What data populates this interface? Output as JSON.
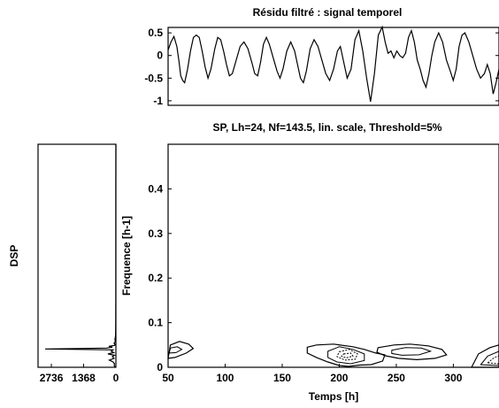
{
  "chart_data": [
    {
      "id": "signal",
      "type": "line",
      "title": "Résidu filtré : signal temporel",
      "xlim": [
        0,
        340
      ],
      "ylim": [
        -1.1,
        0.62
      ],
      "yticks": [
        0.5,
        0,
        -0.5,
        -1
      ],
      "ytick_labels": [
        "0.5",
        "0",
        "-0.5",
        "-1"
      ],
      "series": [
        {
          "x": [
            0,
            3,
            6,
            9,
            11,
            13,
            15,
            17,
            20,
            23,
            26,
            29,
            32,
            35,
            38,
            41,
            44,
            48,
            51,
            54,
            57,
            60,
            63,
            66,
            70,
            74,
            78,
            82,
            86,
            89,
            92,
            95,
            98,
            101,
            104,
            108,
            112,
            115,
            118,
            122,
            126,
            130,
            133,
            136,
            139,
            142,
            146,
            150,
            154,
            158,
            162,
            166,
            170,
            174,
            177,
            181,
            184,
            188,
            192,
            196,
            200,
            204,
            208,
            212,
            216,
            220,
            223,
            226,
            229,
            232,
            235,
            238,
            241,
            244,
            247,
            250,
            253,
            256,
            259,
            262,
            265,
            268,
            271,
            274,
            278,
            282,
            286,
            290,
            293,
            296,
            299,
            302,
            305,
            309,
            313,
            317,
            321,
            325,
            328,
            331,
            334,
            337,
            340
          ],
          "values": [
            0.12,
            0.3,
            0.42,
            0.2,
            -0.1,
            -0.45,
            -0.55,
            -0.6,
            -0.3,
            0.1,
            0.4,
            0.45,
            0.4,
            0.1,
            -0.25,
            -0.5,
            -0.3,
            0.15,
            0.4,
            0.35,
            0.1,
            -0.2,
            -0.45,
            -0.4,
            -0.1,
            0.2,
            0.3,
            0.15,
            -0.15,
            -0.4,
            -0.45,
            -0.15,
            0.25,
            0.4,
            0.25,
            -0.05,
            -0.35,
            -0.5,
            -0.3,
            0.1,
            0.3,
            0.1,
            -0.2,
            -0.5,
            -0.6,
            -0.35,
            0.15,
            0.35,
            0.2,
            -0.1,
            -0.4,
            -0.55,
            -0.3,
            0.1,
            0.2,
            -0.2,
            -0.5,
            -0.3,
            0.35,
            0.55,
            0.1,
            -0.5,
            -1.02,
            -0.4,
            0.45,
            0.63,
            0.3,
            0.05,
            0.1,
            -0.05,
            0.1,
            0.0,
            -0.05,
            0.05,
            0.4,
            0.55,
            0.3,
            -0.1,
            -0.3,
            -0.55,
            -0.7,
            -0.4,
            0.0,
            0.3,
            0.5,
            0.3,
            -0.1,
            -0.35,
            -0.55,
            -0.3,
            0.2,
            0.45,
            0.5,
            0.3,
            0.0,
            -0.3,
            -0.5,
            -0.4,
            -0.2,
            -0.4,
            -0.85,
            -0.6,
            -0.3
          ]
        }
      ]
    },
    {
      "id": "dsp",
      "type": "line",
      "ylabel": "DSP",
      "xticks": [
        2736,
        1368,
        0
      ],
      "xtick_labels": [
        "2736",
        "1368",
        "0"
      ],
      "x_reversed": true,
      "xlim": [
        0,
        3300
      ],
      "ylim": [
        0,
        0.5
      ],
      "series": [
        {
          "freq": [
            0,
            0.004,
            0.008,
            0.012,
            0.016,
            0.02,
            0.024,
            0.027,
            0.03,
            0.033,
            0.036,
            0.039,
            0.041,
            0.043,
            0.045,
            0.047,
            0.049,
            0.051,
            0.054,
            0.058,
            0.062,
            0.07,
            0.08,
            0.1,
            0.15,
            0.2,
            0.3,
            0.4,
            0.5
          ],
          "values": [
            30,
            70,
            60,
            120,
            280,
            80,
            150,
            60,
            340,
            90,
            200,
            120,
            3000,
            400,
            150,
            300,
            60,
            30,
            80,
            20,
            40,
            15,
            10,
            8,
            5,
            4,
            3,
            2,
            1
          ]
        }
      ]
    },
    {
      "id": "spectrogram",
      "type": "contour",
      "title": "SP, Lh=24, Nf=143.5, lin. scale, Threshold=5%",
      "xlabel": "Temps [h]",
      "ylabel": "Frequence [h-1]",
      "xlim": [
        50,
        340
      ],
      "ylim": [
        0,
        0.5
      ],
      "xticks": [
        50,
        100,
        150,
        200,
        250,
        300
      ],
      "xtick_labels": [
        "50",
        "100",
        "150",
        "200",
        "250",
        "300"
      ],
      "yticks": [
        0,
        0.1,
        0.2,
        0.3,
        0.4
      ],
      "ytick_labels": [
        "0",
        "0.1",
        "0.2",
        "0.3",
        "0.4"
      ],
      "contours": [
        {
          "level": 1,
          "points": [
            [
              52,
              0.05
            ],
            [
              60,
              0.058
            ],
            [
              68,
              0.052
            ],
            [
              72,
              0.042
            ],
            [
              66,
              0.032
            ],
            [
              56,
              0.022
            ],
            [
              50,
              0.02
            ]
          ]
        },
        {
          "level": 2,
          "points": [
            [
              52,
              0.043
            ],
            [
              58,
              0.046
            ],
            [
              62,
              0.04
            ],
            [
              57,
              0.033
            ],
            [
              51,
              0.032
            ]
          ]
        },
        {
          "level": 1,
          "points": [
            [
              172,
              0.045
            ],
            [
              180,
              0.05
            ],
            [
              195,
              0.052
            ],
            [
              212,
              0.046
            ],
            [
              222,
              0.04
            ],
            [
              232,
              0.032
            ],
            [
              240,
              0.028
            ],
            [
              238,
              0.014
            ],
            [
              228,
              0.006
            ],
            [
              218,
              0.005
            ],
            [
              208,
              0.002
            ],
            [
              200,
              0.004
            ],
            [
              190,
              0.012
            ],
            [
              180,
              0.022
            ],
            [
              172,
              0.032
            ]
          ]
        },
        {
          "level": 2,
          "points": [
            [
              190,
              0.036
            ],
            [
              200,
              0.046
            ],
            [
              212,
              0.04
            ],
            [
              222,
              0.03
            ],
            [
              222,
              0.015
            ],
            [
              210,
              0.008
            ],
            [
              198,
              0.012
            ],
            [
              190,
              0.022
            ]
          ]
        },
        {
          "level": 3,
          "points": [
            [
              200,
              0.035
            ],
            [
              209,
              0.04
            ],
            [
              216,
              0.03
            ],
            [
              214,
              0.018
            ],
            [
              205,
              0.016
            ],
            [
              198,
              0.024
            ]
          ]
        },
        {
          "level": 4,
          "points": [
            [
              204,
              0.03
            ],
            [
              210,
              0.032
            ],
            [
              212,
              0.025
            ],
            [
              206,
              0.021
            ],
            [
              202,
              0.025
            ]
          ]
        },
        {
          "level": 1,
          "points": [
            [
              234,
              0.044
            ],
            [
              248,
              0.05
            ],
            [
              262,
              0.052
            ],
            [
              278,
              0.048
            ],
            [
              290,
              0.04
            ],
            [
              294,
              0.028
            ],
            [
              284,
              0.02
            ],
            [
              268,
              0.017
            ],
            [
              252,
              0.02
            ],
            [
              240,
              0.026
            ],
            [
              233,
              0.034
            ]
          ]
        },
        {
          "level": 2,
          "points": [
            [
              246,
              0.038
            ],
            [
              258,
              0.044
            ],
            [
              272,
              0.043
            ],
            [
              280,
              0.036
            ],
            [
              270,
              0.028
            ],
            [
              255,
              0.027
            ],
            [
              246,
              0.031
            ]
          ]
        },
        {
          "level": 1,
          "points": [
            [
              316,
              0.0
            ],
            [
              322,
              0.03
            ],
            [
              332,
              0.044
            ],
            [
              340,
              0.05
            ],
            [
              340,
              0.0
            ]
          ]
        },
        {
          "level": 2,
          "points": [
            [
              324,
              0.006
            ],
            [
              330,
              0.025
            ],
            [
              340,
              0.036
            ],
            [
              340,
              0.004
            ]
          ]
        },
        {
          "level": 3,
          "points": [
            [
              330,
              0.01
            ],
            [
              336,
              0.022
            ],
            [
              340,
              0.026
            ],
            [
              340,
              0.008
            ]
          ]
        }
      ]
    }
  ]
}
